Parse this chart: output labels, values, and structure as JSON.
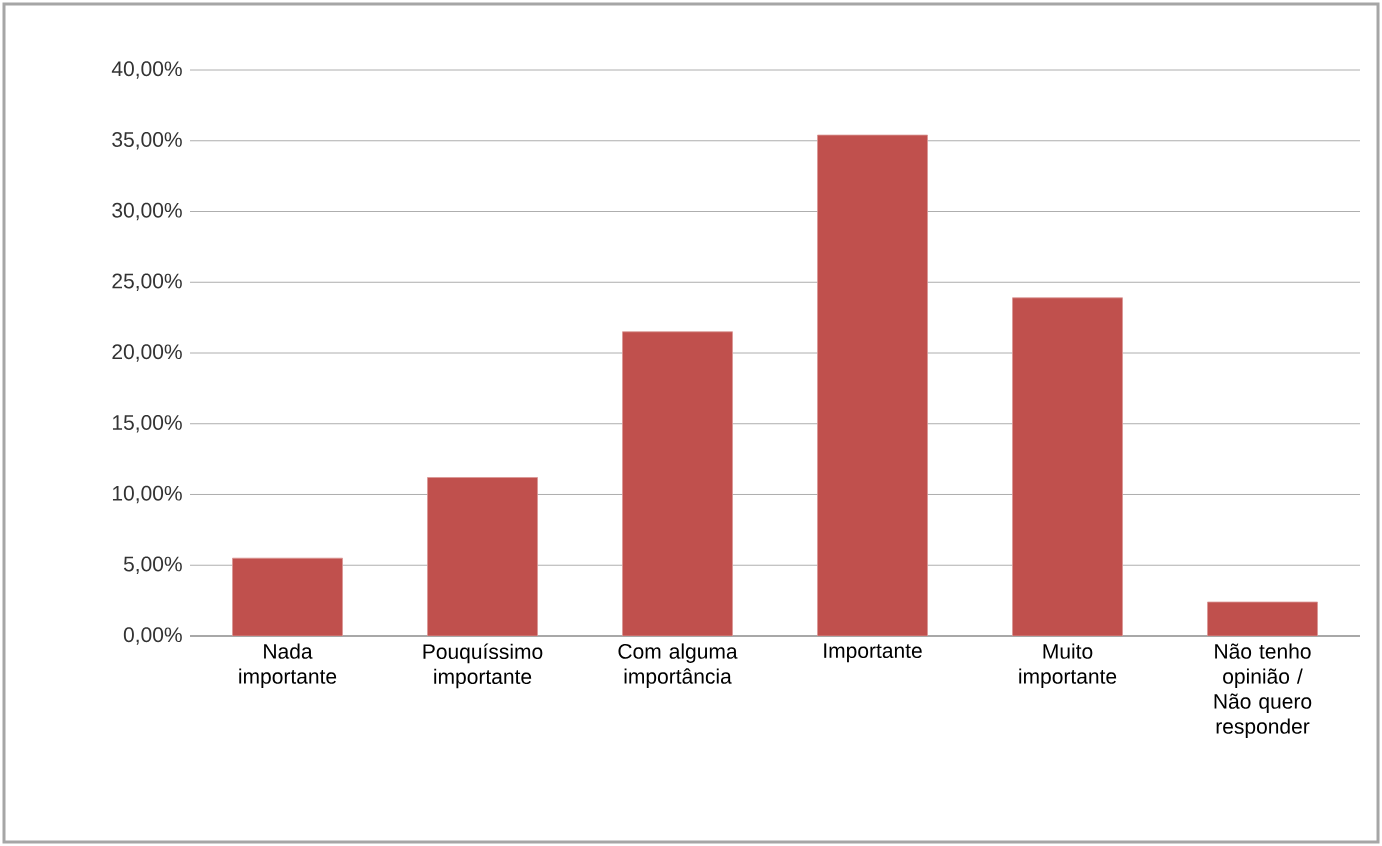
{
  "chart_data": {
    "type": "bar",
    "categories": [
      "Nada importante",
      "Pouquíssimo importante",
      "Com alguma importância",
      "Importante",
      "Muito importante",
      "Não tenho opinião / Não quero responder"
    ],
    "values": [
      5.5,
      11.2,
      21.5,
      35.4,
      23.9,
      2.4
    ],
    "color": "#c0504d",
    "ylim": [
      0,
      40
    ],
    "yticks": [
      {
        "value": 0,
        "label": "0,00%"
      },
      {
        "value": 5,
        "label": "5,00%"
      },
      {
        "value": 10,
        "label": "10,00%"
      },
      {
        "value": 15,
        "label": "15,00%"
      },
      {
        "value": 20,
        "label": "20,00%"
      },
      {
        "value": 25,
        "label": "25,00%"
      },
      {
        "value": 30,
        "label": "30,00%"
      },
      {
        "value": 35,
        "label": "35,00%"
      },
      {
        "value": 40,
        "label": "40,00%"
      }
    ],
    "grid": "y"
  }
}
